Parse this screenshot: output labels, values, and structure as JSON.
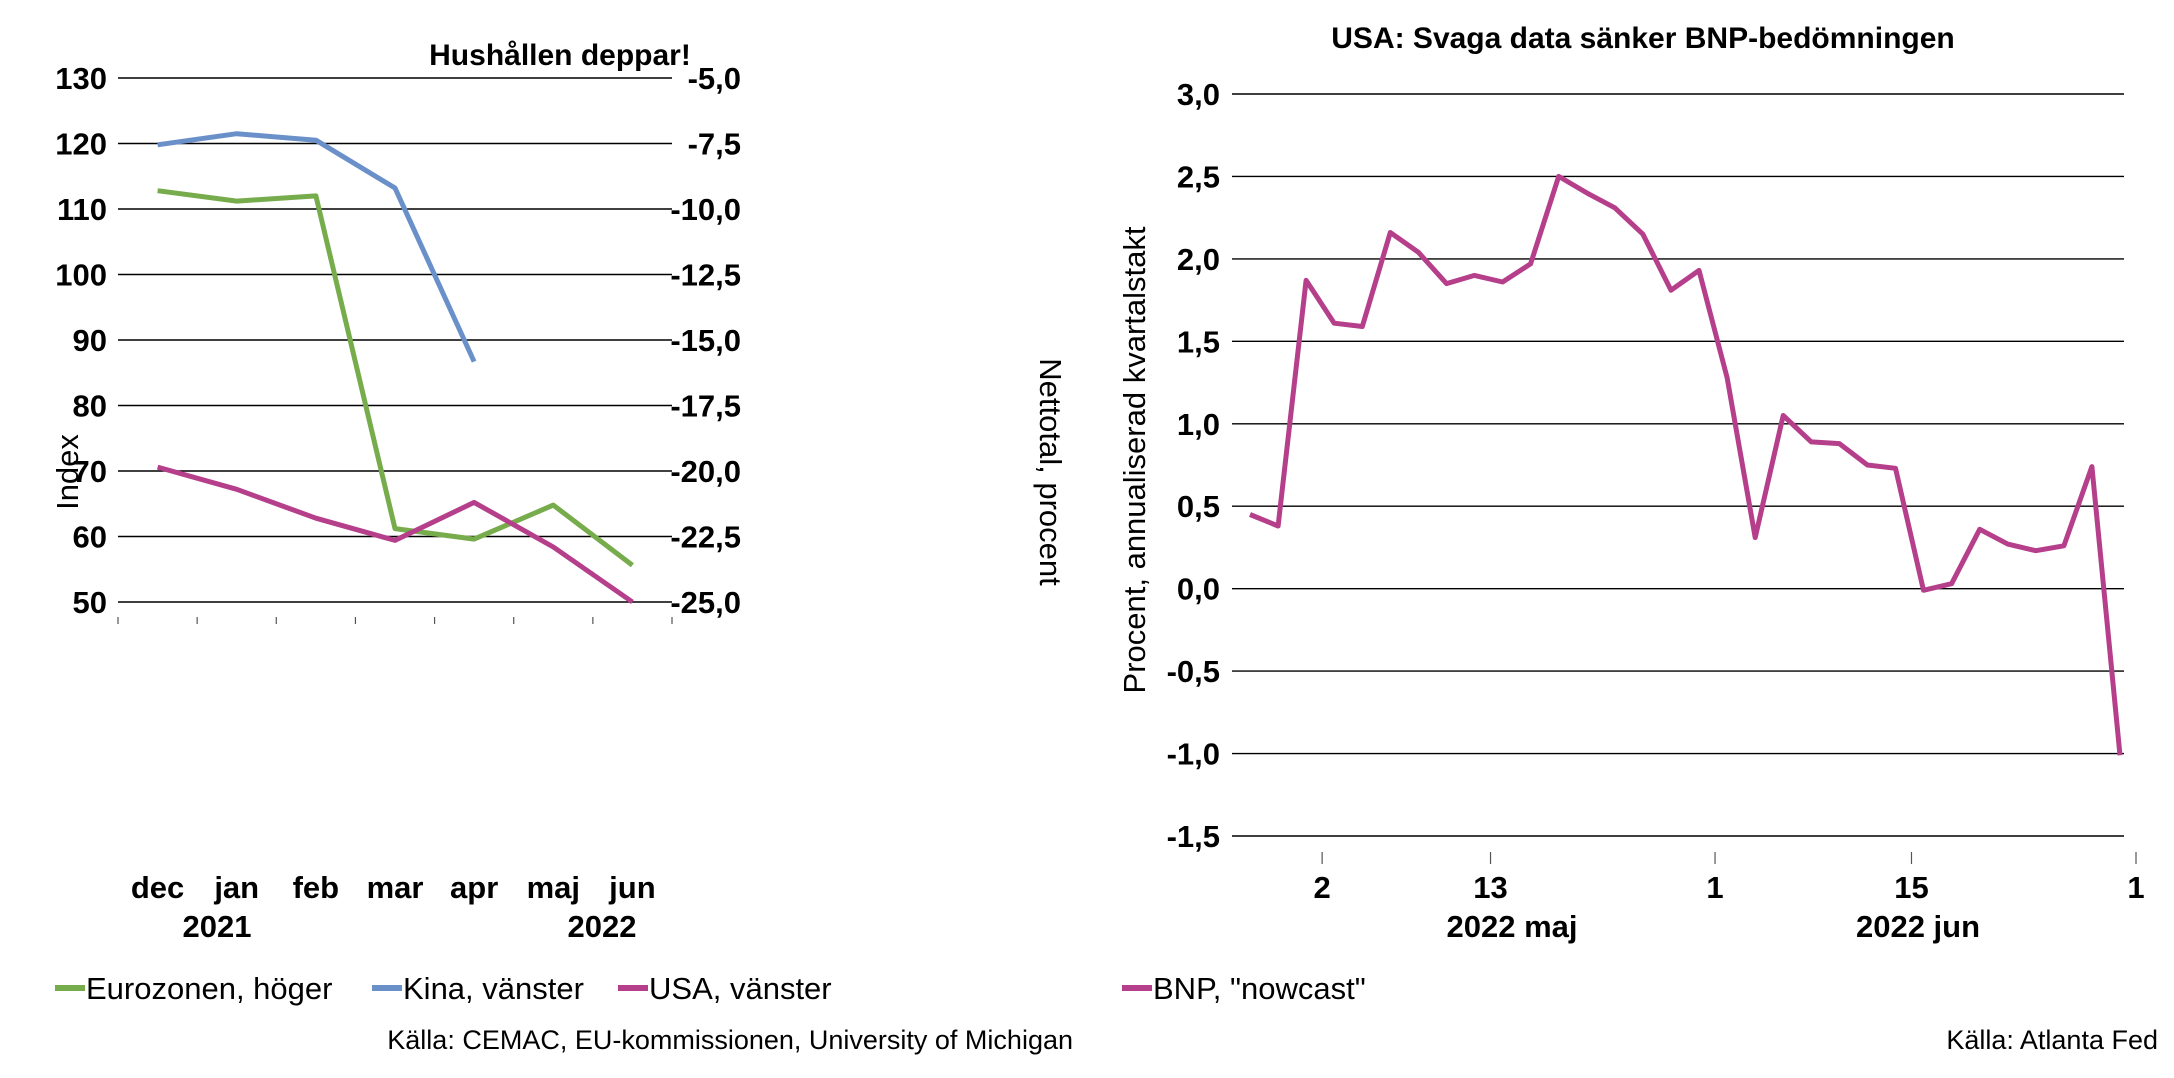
{
  "chart_data": [
    {
      "type": "line",
      "title": "Hushållen deppar!",
      "categories": [
        "dec",
        "jan",
        "feb",
        "mar",
        "apr",
        "maj",
        "jun"
      ],
      "year_labels": [
        "2021",
        "2022"
      ],
      "ylabel": "Index",
      "ylabel_right": "Nettotal, procent",
      "ylim": [
        50,
        130
      ],
      "ylim_right": [
        -25.0,
        -5.0
      ],
      "yticks_left": [
        "130",
        "120",
        "110",
        "100",
        "90",
        "80",
        "70",
        "60",
        "50"
      ],
      "yticks_right": [
        "-5,0",
        "-7,5",
        "-10,0",
        "-12,5",
        "-15,0",
        "-17,5",
        "-20,0",
        "-22,5",
        "-25,0"
      ],
      "grid": true,
      "legend_position": "bottom",
      "series": [
        {
          "name": "Eurozonen, höger",
          "axis": "right",
          "color": "#77ac4c",
          "values": [
            -9.3,
            -9.7,
            -9.5,
            -22.2,
            -22.6,
            -21.3,
            -23.6
          ]
        },
        {
          "name": "Kina, vänster",
          "axis": "left",
          "color": "#6a90c9",
          "values": [
            119.8,
            121.5,
            120.5,
            113.2,
            86.7,
            null,
            null
          ]
        },
        {
          "name": "USA, vänster",
          "axis": "left",
          "color": "#b53f8a",
          "values": [
            70.6,
            67.2,
            62.8,
            59.4,
            65.2,
            58.4,
            50.0
          ]
        }
      ],
      "source": "Källa: CEMAC, EU-kommissionen, University of Michigan"
    },
    {
      "type": "line",
      "title": "USA: Svaga data sänker BNP-bedömningen",
      "ylabel": "Procent, annualiserad kvartalstakt",
      "ylim": [
        -1.5,
        3.0
      ],
      "yticks": [
        "3,0",
        "2,5",
        "2,0",
        "1,5",
        "1,0",
        "0,5",
        "0,0",
        "-0,5",
        "-1,0",
        "-1,5"
      ],
      "xticks": [
        "2",
        "13",
        "1",
        "15",
        "1"
      ],
      "xgroups": [
        "2022 maj",
        "2022 jun"
      ],
      "grid": true,
      "legend_position": "bottom",
      "series": [
        {
          "name": "BNP, \"nowcast\"",
          "color": "#b53f8a",
          "values": [
            0.45,
            0.38,
            1.87,
            1.61,
            1.59,
            2.16,
            2.04,
            1.85,
            1.9,
            1.86,
            1.97,
            2.5,
            2.4,
            2.31,
            2.15,
            1.81,
            1.93,
            1.28,
            0.31,
            1.05,
            0.89,
            0.88,
            0.75,
            0.73,
            -0.01,
            0.03,
            0.36,
            0.27,
            0.23,
            0.26,
            0.74,
            -1.01
          ]
        }
      ],
      "source": "Källa: Atlanta Fed"
    }
  ]
}
